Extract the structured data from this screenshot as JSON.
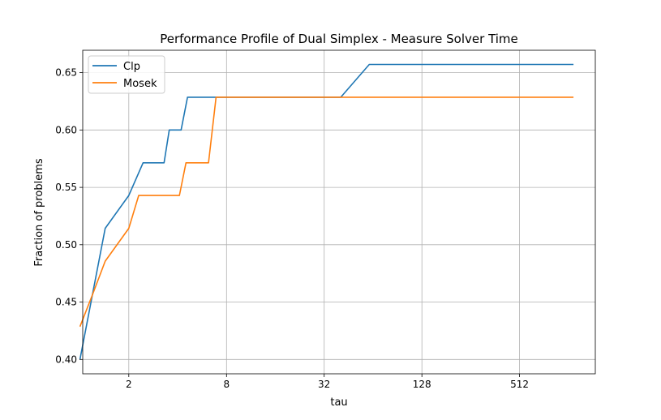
{
  "chart_data": {
    "type": "line",
    "title": "Performance Profile of Dual Simplex - Measure Solver Time",
    "xlabel": "tau",
    "ylabel": "Fraction of problems",
    "x_scale": "log2",
    "xlim": [
      1.04,
      1500
    ],
    "ylim": [
      0.3875,
      0.6695
    ],
    "x_ticks": [
      2,
      8,
      32,
      128,
      512
    ],
    "x_tick_labels": [
      "2",
      "8",
      "32",
      "128",
      "512"
    ],
    "y_ticks": [
      0.4,
      0.45,
      0.5,
      0.55,
      0.6,
      0.65
    ],
    "y_tick_labels": [
      "0.40",
      "0.45",
      "0.50",
      "0.55",
      "0.60",
      "0.65"
    ],
    "grid": true,
    "legend_position": "top-left",
    "series": [
      {
        "name": "Clp",
        "color": "#1f77b4",
        "x": [
          1.0,
          1.43,
          2.0,
          2.45,
          3.3,
          3.55,
          4.2,
          4.6,
          6.8,
          9.6,
          40.5,
          60.7,
          1100
        ],
        "y": [
          0.4,
          0.5143,
          0.5429,
          0.5714,
          0.5714,
          0.6,
          0.6,
          0.6286,
          0.6286,
          0.6286,
          0.6286,
          0.6571,
          0.6571
        ]
      },
      {
        "name": "Mosek",
        "color": "#ff7f0e",
        "x": [
          1.0,
          1.2,
          1.43,
          2.0,
          2.3,
          2.6,
          3.55,
          4.1,
          4.5,
          6.2,
          6.9,
          9.6,
          60.7,
          1100
        ],
        "y": [
          0.4286,
          0.4571,
          0.4857,
          0.5143,
          0.5429,
          0.5429,
          0.5429,
          0.5429,
          0.5714,
          0.5714,
          0.6286,
          0.6286,
          0.6286,
          0.6286
        ]
      }
    ]
  }
}
